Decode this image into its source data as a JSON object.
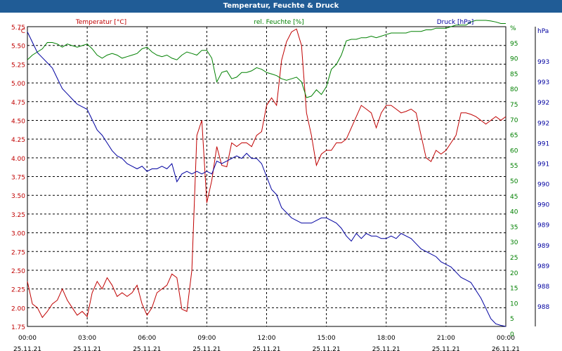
{
  "window": {
    "title": "Temperatur, Feuchte & Druck"
  },
  "chart_data": {
    "type": "line",
    "title": "Temperatur, Feuchte & Druck",
    "grid": true,
    "x_ticks": [
      {
        "time": "00:00",
        "date": "25.11.21"
      },
      {
        "time": "03:00",
        "date": "25.11.21"
      },
      {
        "time": "06:00",
        "date": "25.11.21"
      },
      {
        "time": "09:00",
        "date": "25.11.21"
      },
      {
        "time": "12:00",
        "date": "25.11.21"
      },
      {
        "time": "15:00",
        "date": "25.11.21"
      },
      {
        "time": "18:00",
        "date": "25.11.21"
      },
      {
        "time": "21:00",
        "date": "25.11.21"
      },
      {
        "time": "00:00",
        "date": "26.11.21"
      }
    ],
    "x_hours_range": [
      0,
      24
    ],
    "axes": {
      "temperature": {
        "unit": "°C",
        "ylim": [
          1.75,
          5.75
        ],
        "ticks": [
          "1.75",
          "2.00",
          "2.25",
          "2.50",
          "2.75",
          "3.00",
          "3.25",
          "3.50",
          "3.75",
          "4.00",
          "4.25",
          "4.50",
          "4.75",
          "5.00",
          "5.25",
          "5.50",
          "5.75"
        ],
        "color": "#c00000"
      },
      "humidity": {
        "unit": "%",
        "ylim": [
          0,
          95
        ],
        "ticks": [
          "0",
          "5",
          "10",
          "15",
          "20",
          "25",
          "30",
          "35",
          "40",
          "45",
          "50",
          "55",
          "60",
          "65",
          "70",
          "75",
          "80",
          "85",
          "90",
          "95",
          "%"
        ],
        "color": "#008000"
      },
      "pressure": {
        "unit": "hPa",
        "ylim": [
          987.8,
          993.6
        ],
        "ticks": [
          "988",
          "988",
          "989",
          "989",
          "989",
          "990",
          "990",
          "991",
          "991",
          "992",
          "992",
          "993",
          "993"
        ],
        "color": "#0000a0"
      }
    },
    "series": [
      {
        "name": "Temperatur [°C]",
        "axis": "temperature",
        "color": "#c00000",
        "x": [
          0,
          0.25,
          0.5,
          0.75,
          1,
          1.25,
          1.5,
          1.75,
          2,
          2.25,
          2.5,
          2.75,
          3,
          3.25,
          3.5,
          3.75,
          4,
          4.25,
          4.5,
          4.75,
          5,
          5.25,
          5.5,
          5.75,
          6,
          6.25,
          6.5,
          6.75,
          7,
          7.25,
          7.5,
          7.75,
          8,
          8.25,
          8.5,
          8.75,
          9,
          9.25,
          9.5,
          9.75,
          10,
          10.25,
          10.5,
          10.75,
          11,
          11.25,
          11.5,
          11.75,
          12,
          12.25,
          12.5,
          12.75,
          13,
          13.25,
          13.5,
          13.75,
          14,
          14.25,
          14.5,
          14.75,
          15,
          15.25,
          15.5,
          15.75,
          16,
          16.25,
          16.5,
          16.75,
          17,
          17.25,
          17.5,
          17.75,
          18,
          18.25,
          18.5,
          18.75,
          19,
          19.25,
          19.5,
          19.75,
          20,
          20.25,
          20.5,
          20.75,
          21,
          21.25,
          21.5,
          21.75,
          22,
          22.25,
          22.5,
          22.75,
          23,
          23.25,
          23.5,
          23.75,
          24
        ],
        "values": [
          2.35,
          2.05,
          2.0,
          1.87,
          1.95,
          2.05,
          2.1,
          2.25,
          2.1,
          2.0,
          1.9,
          1.95,
          1.88,
          2.2,
          2.35,
          2.25,
          2.4,
          2.3,
          2.15,
          2.2,
          2.15,
          2.2,
          2.3,
          2.05,
          1.9,
          2.0,
          2.2,
          2.25,
          2.3,
          2.45,
          2.4,
          1.98,
          1.95,
          2.5,
          4.3,
          4.5,
          3.4,
          3.7,
          4.15,
          3.9,
          3.88,
          4.2,
          4.15,
          4.2,
          4.2,
          4.15,
          4.3,
          4.35,
          4.7,
          4.8,
          4.7,
          5.3,
          5.55,
          5.68,
          5.72,
          5.5,
          4.6,
          4.3,
          3.9,
          4.05,
          4.1,
          4.1,
          4.2,
          4.2,
          4.25,
          4.4,
          4.55,
          4.7,
          4.65,
          4.6,
          4.4,
          4.6,
          4.7,
          4.7,
          4.65,
          4.6,
          4.62,
          4.65,
          4.6,
          4.3,
          4.0,
          3.95,
          4.1,
          4.05,
          4.1,
          4.2,
          4.3,
          4.6,
          4.6,
          4.58,
          4.55,
          4.5,
          4.45,
          4.5,
          4.55,
          4.5,
          4.55
        ]
      },
      {
        "name": "rel. Feuchte [%]",
        "axis": "humidity",
        "color": "#008000",
        "x": [
          0,
          0.25,
          0.5,
          0.75,
          1,
          1.25,
          1.5,
          1.75,
          2,
          2.25,
          2.5,
          2.75,
          3,
          3.25,
          3.5,
          3.75,
          4,
          4.25,
          4.5,
          4.75,
          5,
          5.25,
          5.5,
          5.75,
          6,
          6.25,
          6.5,
          6.75,
          7,
          7.25,
          7.5,
          7.75,
          8,
          8.25,
          8.5,
          8.75,
          9,
          9.25,
          9.5,
          9.75,
          10,
          10.25,
          10.5,
          10.75,
          11,
          11.25,
          11.5,
          11.75,
          12,
          12.25,
          12.5,
          12.75,
          13,
          13.25,
          13.5,
          13.75,
          14,
          14.25,
          14.5,
          14.75,
          15,
          15.25,
          15.5,
          15.75,
          16,
          16.25,
          16.5,
          16.75,
          17,
          17.25,
          17.5,
          17.75,
          18,
          18.25,
          18.5,
          18.75,
          19,
          19.25,
          19.5,
          19.75,
          20,
          20.25,
          20.5,
          20.75,
          21,
          21.25,
          21.5,
          21.75,
          22,
          22.25,
          22.5,
          22.75,
          23,
          23.25,
          23.5,
          23.75,
          24
        ],
        "values": [
          84.5,
          86,
          87,
          88,
          90,
          90,
          89.5,
          88.5,
          89.5,
          89,
          88.5,
          89,
          89.5,
          88,
          86,
          85,
          86,
          86.5,
          86,
          85,
          85.5,
          86,
          86.5,
          88,
          88.5,
          87,
          86,
          85.5,
          86,
          85,
          84.5,
          86,
          87,
          86.5,
          86,
          87.5,
          87.5,
          85,
          77.5,
          80.5,
          81,
          78.5,
          79,
          80.5,
          80.5,
          81,
          82,
          81.5,
          80.5,
          80,
          79.5,
          78.5,
          78,
          78.5,
          79,
          77.5,
          72.5,
          73,
          75,
          73.5,
          76,
          81.5,
          83,
          86,
          90.5,
          91,
          91,
          91.5,
          91.5,
          92,
          91.5,
          92,
          92.5,
          93,
          93,
          93,
          93,
          93.5,
          93.5,
          93.5,
          94,
          94,
          94.5,
          94.5,
          94.5,
          95,
          95.5,
          95.5,
          95.5,
          96.5,
          97,
          97,
          97,
          96.8,
          96.5,
          96,
          96
        ]
      },
      {
        "name": "Druck [hPa]",
        "axis": "pressure",
        "color": "#0000a0",
        "x": [
          0,
          0.25,
          0.5,
          0.75,
          1,
          1.25,
          1.5,
          1.75,
          2,
          2.25,
          2.5,
          2.75,
          3,
          3.25,
          3.5,
          3.75,
          4,
          4.25,
          4.5,
          4.75,
          5,
          5.25,
          5.5,
          5.75,
          6,
          6.25,
          6.5,
          6.75,
          7,
          7.25,
          7.5,
          7.75,
          8,
          8.25,
          8.5,
          8.75,
          9,
          9.25,
          9.5,
          9.75,
          10,
          10.25,
          10.5,
          10.75,
          11,
          11.25,
          11.5,
          11.75,
          12,
          12.25,
          12.5,
          12.75,
          13,
          13.25,
          13.5,
          13.75,
          14,
          14.25,
          14.5,
          14.75,
          15,
          15.25,
          15.5,
          15.75,
          16,
          16.25,
          16.5,
          16.75,
          17,
          17.25,
          17.5,
          17.75,
          18,
          18.25,
          18.5,
          18.75,
          19,
          19.25,
          19.5,
          19.75,
          20,
          20.25,
          20.5,
          20.75,
          21,
          21.25,
          21.5,
          21.75,
          22,
          22.25,
          22.5,
          22.75,
          23,
          23.25,
          23.5,
          23.75,
          24
        ],
        "values": [
          993.5,
          993.3,
          993.1,
          993.0,
          992.9,
          992.8,
          992.6,
          992.4,
          992.3,
          992.2,
          992.1,
          992.05,
          992.0,
          991.8,
          991.6,
          991.5,
          991.35,
          991.2,
          991.1,
          991.05,
          990.95,
          990.9,
          990.85,
          990.9,
          990.8,
          990.85,
          990.85,
          990.9,
          990.85,
          990.95,
          990.6,
          990.75,
          990.8,
          990.75,
          990.8,
          990.75,
          990.8,
          990.75,
          991.0,
          990.95,
          991.0,
          991.05,
          991.1,
          991.05,
          991.15,
          991.05,
          991.05,
          990.95,
          990.7,
          990.45,
          990.35,
          990.1,
          990.0,
          989.9,
          989.85,
          989.8,
          989.8,
          989.8,
          989.85,
          989.9,
          989.9,
          989.85,
          989.8,
          989.7,
          989.55,
          989.45,
          989.6,
          989.5,
          989.6,
          989.55,
          989.55,
          989.5,
          989.5,
          989.55,
          989.5,
          989.6,
          989.55,
          989.5,
          989.4,
          989.3,
          989.25,
          989.2,
          989.15,
          989.05,
          989.0,
          988.95,
          988.85,
          988.75,
          988.7,
          988.65,
          988.5,
          988.35,
          988.15,
          987.95,
          987.85,
          987.82,
          987.8
        ]
      }
    ]
  }
}
